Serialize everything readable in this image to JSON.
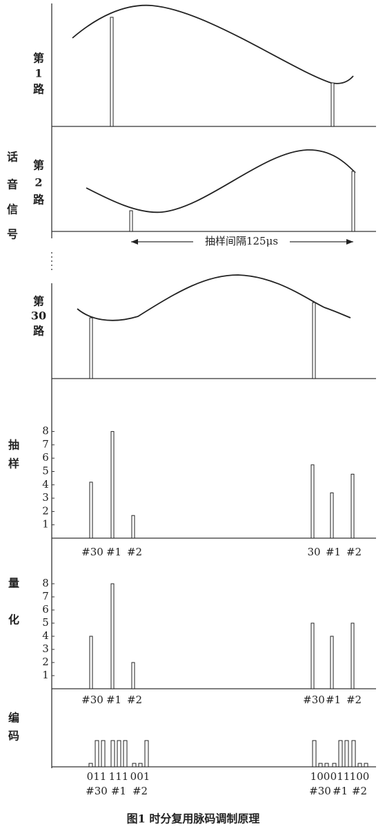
{
  "signal_label": [
    "话",
    "音",
    "信",
    "号"
  ],
  "channels": [
    {
      "label": [
        "第",
        "1",
        "路"
      ]
    },
    {
      "label": [
        "第",
        "2",
        "路"
      ]
    },
    {
      "label": [
        "第",
        "30",
        "路"
      ]
    }
  ],
  "interval_label": "抽样间隔125μs",
  "sampling": {
    "label": [
      "抽",
      "样"
    ],
    "yticks": [
      1,
      2,
      3,
      4,
      5,
      6,
      7,
      8
    ],
    "categories": [
      "#30",
      "#1",
      "#2",
      "30",
      "#1",
      "#2"
    ],
    "values": [
      4.2,
      8,
      1.7,
      5.5,
      3.4,
      4.8
    ]
  },
  "quantization": {
    "label": [
      "量",
      "化"
    ],
    "yticks": [
      1,
      2,
      3,
      4,
      5,
      6,
      7,
      8
    ],
    "categories": [
      "#30",
      "#1",
      "#2",
      "#30",
      "#1",
      "#2"
    ],
    "values": [
      4,
      8,
      2,
      5,
      4,
      5
    ]
  },
  "encoding": {
    "label": [
      "编",
      "码"
    ],
    "codes": [
      "011",
      "111",
      "001",
      "100",
      "011",
      "100"
    ],
    "categories": [
      "#30",
      "#1",
      "#2",
      "#30",
      "#1",
      "#2"
    ]
  },
  "caption": "图1  时分复用脉码调制原理"
}
